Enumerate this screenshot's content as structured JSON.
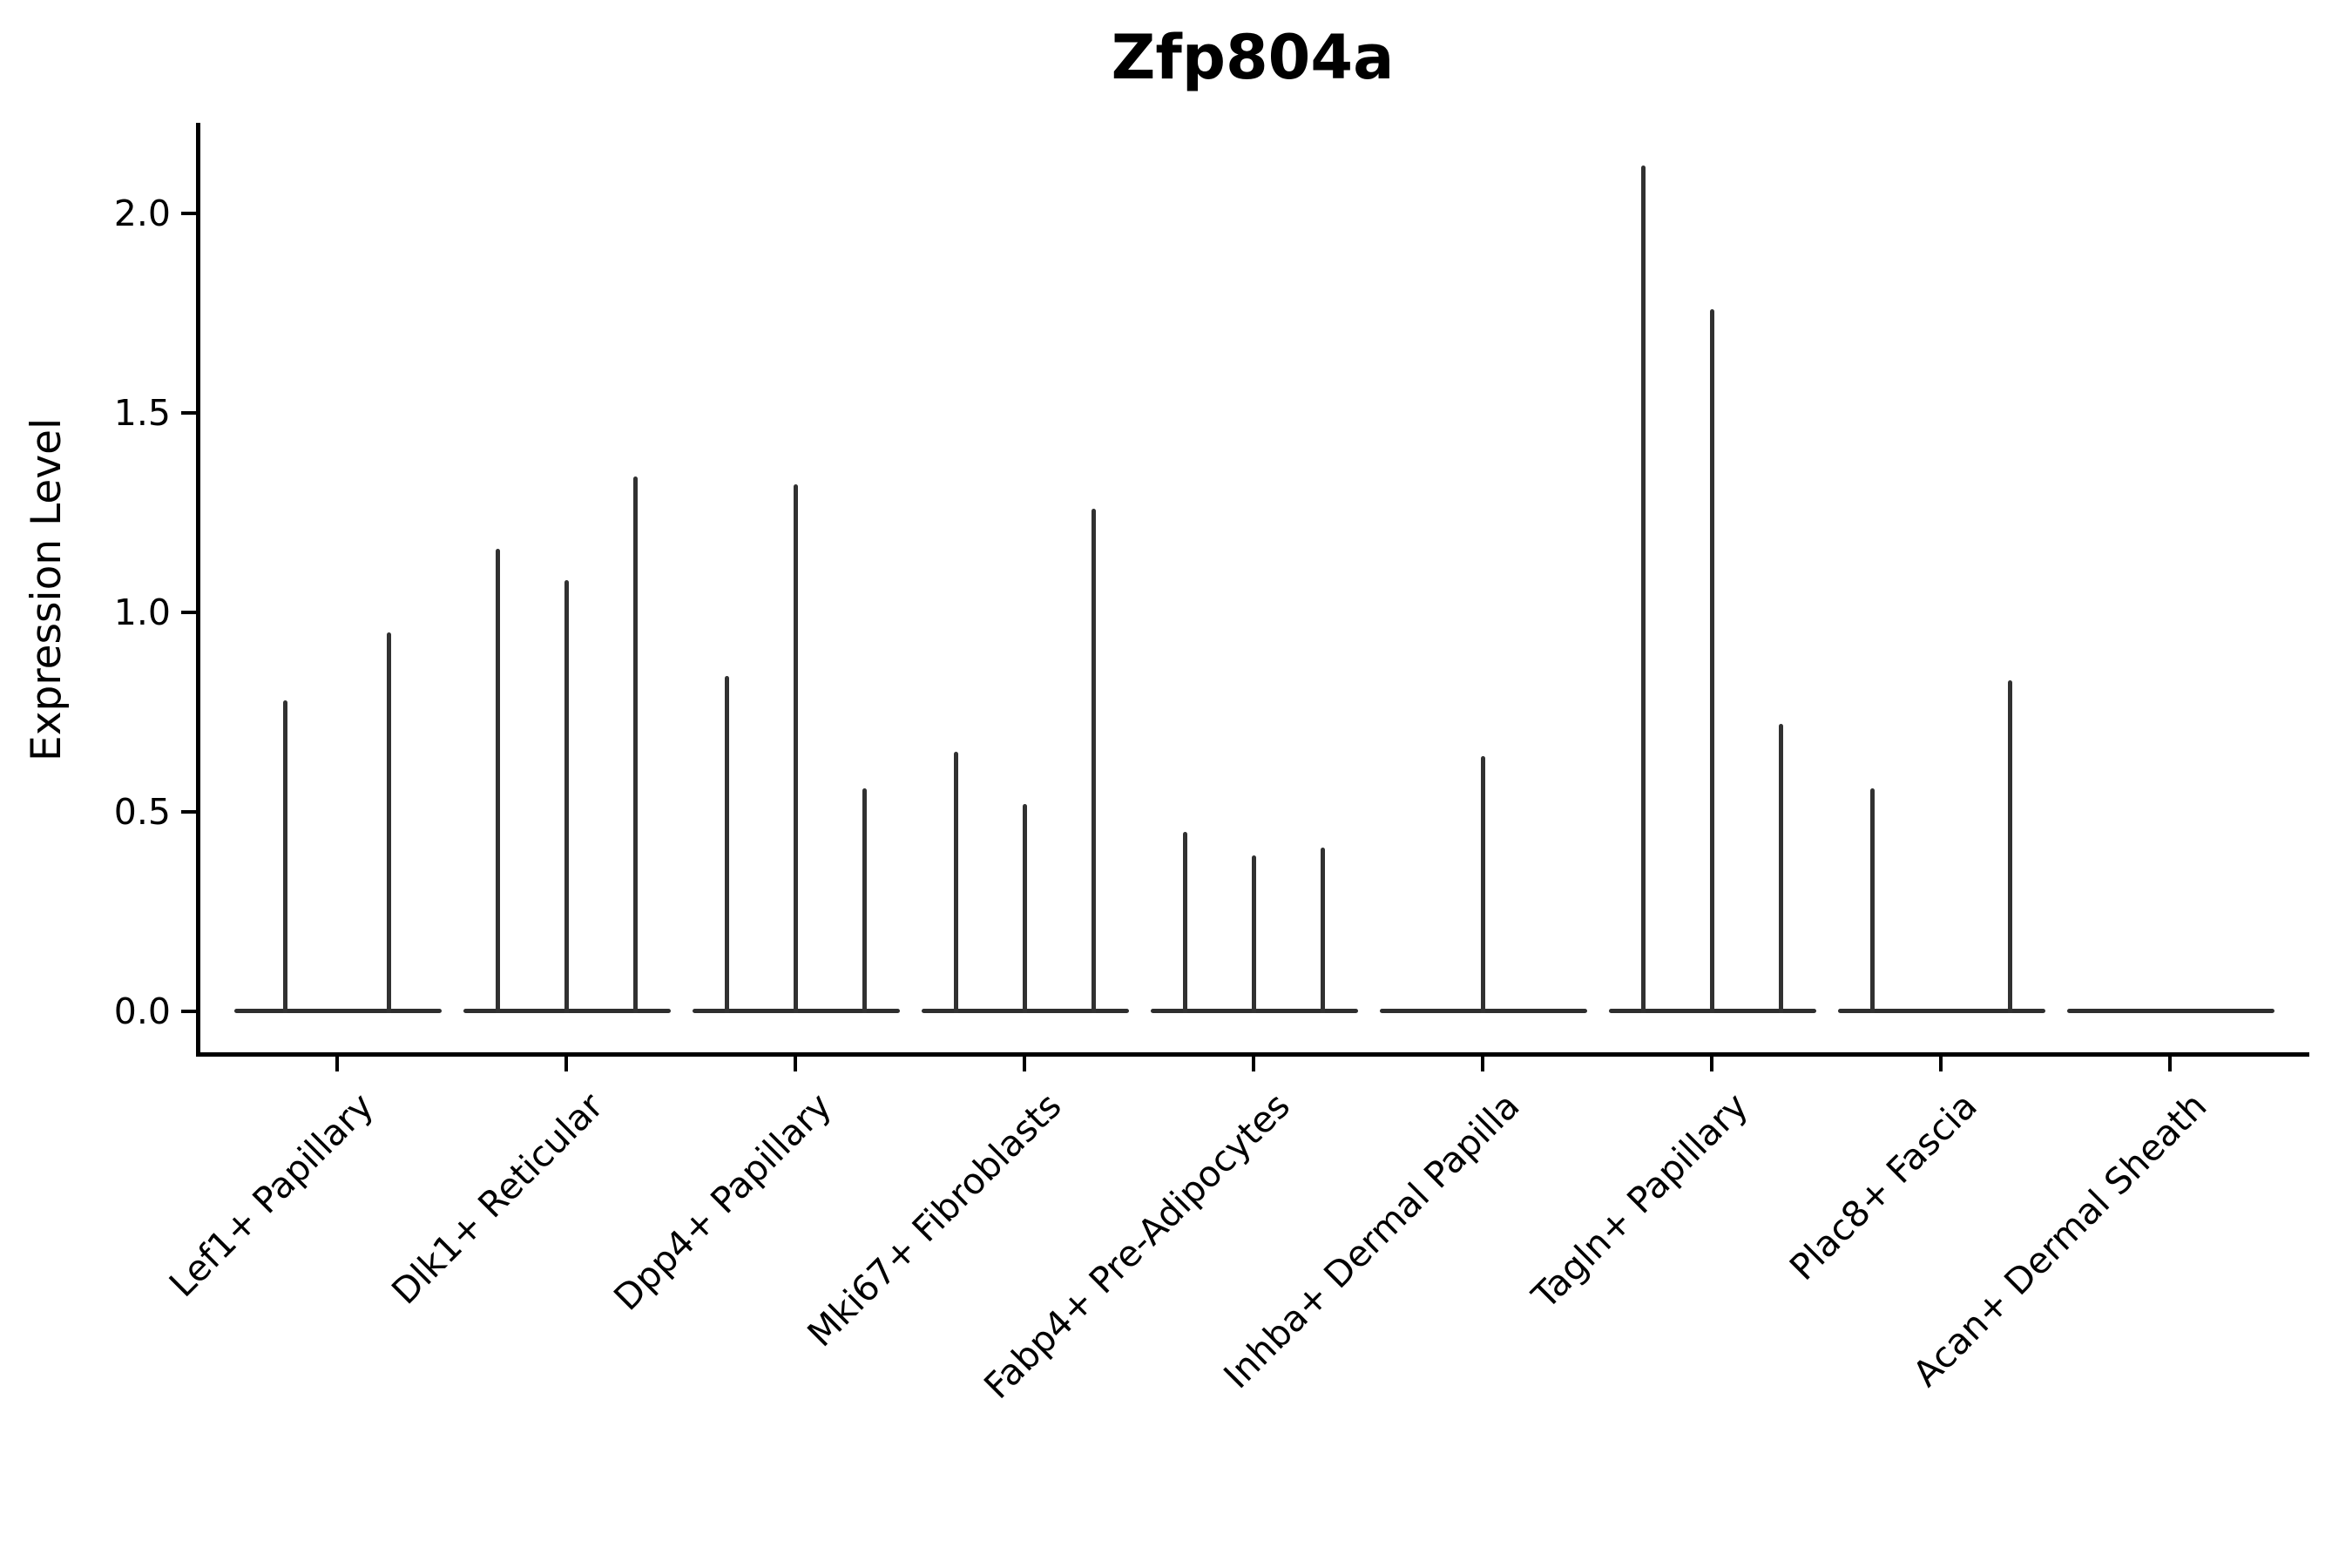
{
  "chart_data": {
    "type": "violin",
    "title": "Zfp804a",
    "ylabel": "Expression Level",
    "xlabel": "",
    "yticks": [
      "0.0",
      "0.5",
      "1.0",
      "1.5",
      "2.0"
    ],
    "ytick_values": [
      0.0,
      0.5,
      1.0,
      1.5,
      2.0
    ],
    "ylim": [
      -0.11,
      2.23
    ],
    "grid": false,
    "legend": "none",
    "style": "spike violins: each violin is a flat density base at 0 with a thin vertical line rising to its maximum expression value",
    "violin_color": "#2e2e2e",
    "axis_color": "#000000",
    "background_color": "#ffffff",
    "groups": [
      {
        "label": "Lef1+ Papillary",
        "violin_max_values": [
          0.78,
          0.95
        ]
      },
      {
        "label": "Dlk1+ Reticular",
        "violin_max_values": [
          1.16,
          1.08,
          1.34
        ]
      },
      {
        "label": "Dpp4+ Papillary",
        "violin_max_values": [
          0.84,
          1.32,
          0.56
        ]
      },
      {
        "label": "Mki67+ Fibroblasts",
        "violin_max_values": [
          0.65,
          0.52,
          1.26
        ]
      },
      {
        "label": "Fabp4+ Pre-Adipocytes",
        "violin_max_values": [
          0.45,
          0.39,
          0.41
        ]
      },
      {
        "label": "Inhba+ Dermal Papilla",
        "violin_max_values": [
          0.64
        ]
      },
      {
        "label": "Tagln+ Papillary",
        "violin_max_values": [
          2.12,
          1.76,
          0.72
        ]
      },
      {
        "label": "Plac8+ Fascia",
        "violin_max_values": [
          0.56,
          0,
          0.83
        ]
      },
      {
        "label": "Acan+ Dermal Sheath",
        "violin_max_values": [
          0
        ]
      }
    ]
  }
}
